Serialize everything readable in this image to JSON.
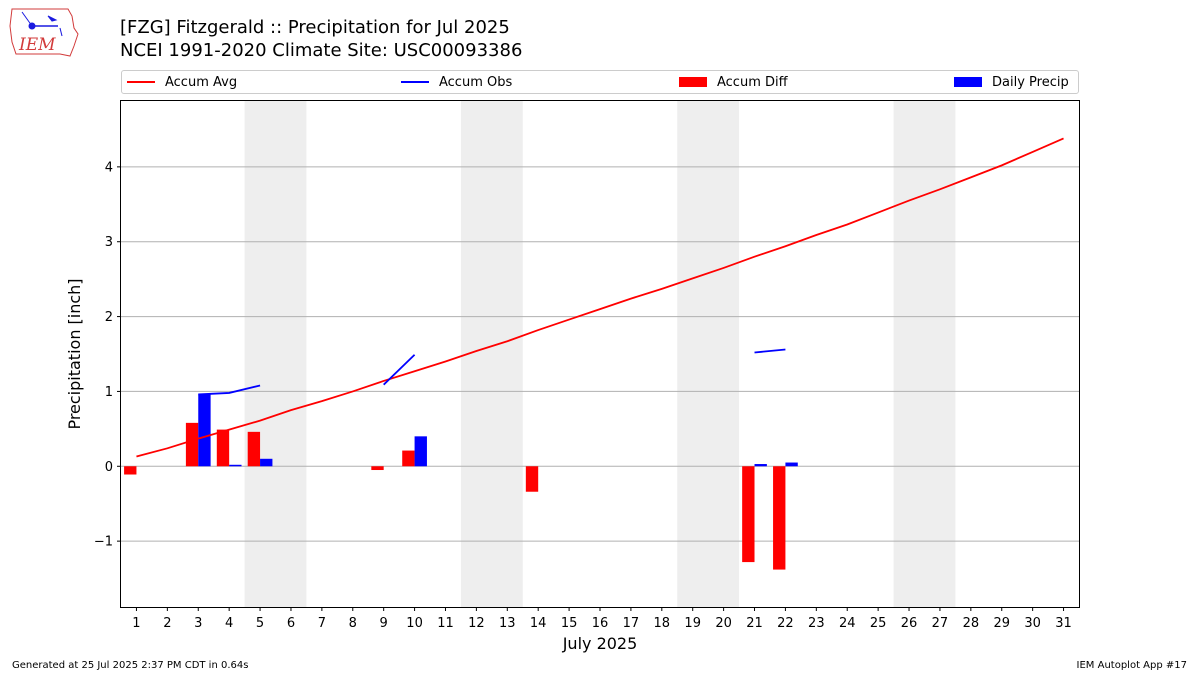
{
  "header": {
    "title_line1": "[FZG] Fitzgerald :: Precipitation for Jul 2025",
    "title_line2": "NCEI 1991-2020 Climate Site: USC00093386",
    "logo_text": "IEM"
  },
  "legend": [
    {
      "label": "Accum Avg",
      "color": "#ff0000",
      "kind": "line"
    },
    {
      "label": "Accum Obs",
      "color": "#0000ff",
      "kind": "line"
    },
    {
      "label": "Accum Diff",
      "color": "#ff0000",
      "kind": "box"
    },
    {
      "label": "Daily Precip",
      "color": "#0000ff",
      "kind": "box"
    }
  ],
  "footer": {
    "left": "Generated at 25 Jul 2025 2:37 PM CDT in 0.64s",
    "right": "IEM Autoplot App #17"
  },
  "chart_data": {
    "type": "bar",
    "xlabel": "July 2025",
    "ylabel": "Precipitation [inch]",
    "xlim": [
      0.5,
      31.5
    ],
    "ylim": [
      -1.88,
      4.88
    ],
    "yticks": [
      -1,
      0,
      1,
      2,
      3,
      4
    ],
    "ytick_labels": [
      "−1",
      "0",
      "1",
      "2",
      "3",
      "4"
    ],
    "categories": [
      "1",
      "2",
      "3",
      "4",
      "5",
      "6",
      "7",
      "8",
      "9",
      "10",
      "11",
      "12",
      "13",
      "14",
      "15",
      "16",
      "17",
      "18",
      "19",
      "20",
      "21",
      "22",
      "23",
      "24",
      "25",
      "26",
      "27",
      "28",
      "29",
      "30",
      "31"
    ],
    "grid": "horizontal",
    "legend_position": "top",
    "weekend_shading": [
      [
        4.5,
        6.5
      ],
      [
        11.5,
        13.5
      ],
      [
        18.5,
        20.5
      ],
      [
        25.5,
        27.5
      ]
    ],
    "series": [
      {
        "name": "Accum Avg",
        "type": "line",
        "color": "#ff0000",
        "x": [
          1,
          2,
          3,
          4,
          5,
          6,
          7,
          8,
          9,
          10,
          11,
          12,
          13,
          14,
          15,
          16,
          17,
          18,
          19,
          20,
          21,
          22,
          23,
          24,
          25,
          26,
          27,
          28,
          29,
          30,
          31
        ],
        "values": [
          0.13,
          0.24,
          0.37,
          0.49,
          0.61,
          0.75,
          0.87,
          1.0,
          1.14,
          1.27,
          1.4,
          1.54,
          1.67,
          1.82,
          1.96,
          2.1,
          2.24,
          2.37,
          2.51,
          2.65,
          2.8,
          2.94,
          3.09,
          3.23,
          3.39,
          3.55,
          3.7,
          3.86,
          4.02,
          4.2,
          4.38
        ]
      },
      {
        "name": "Accum Obs",
        "type": "line",
        "color": "#0000ff",
        "segments": [
          {
            "x": [
              3,
              4,
              5
            ],
            "values": [
              0.96,
              0.98,
              1.08
            ]
          },
          {
            "x": [
              9,
              10
            ],
            "values": [
              1.09,
              1.49
            ]
          },
          {
            "x": [
              21,
              22
            ],
            "values": [
              1.52,
              1.56
            ]
          }
        ]
      },
      {
        "name": "Accum Diff",
        "type": "bar",
        "color": "#ff0000",
        "offset": -0.2,
        "x": [
          1,
          3,
          4,
          5,
          9,
          10,
          14,
          21,
          22
        ],
        "values": [
          -0.11,
          0.58,
          0.49,
          0.46,
          -0.05,
          0.21,
          -0.34,
          -1.28,
          -1.38
        ]
      },
      {
        "name": "Daily Precip",
        "type": "bar",
        "color": "#0000ff",
        "offset": 0.2,
        "x": [
          3,
          4,
          5,
          10,
          21,
          22
        ],
        "values": [
          0.96,
          0.02,
          0.1,
          0.4,
          0.03,
          0.05
        ]
      }
    ]
  }
}
